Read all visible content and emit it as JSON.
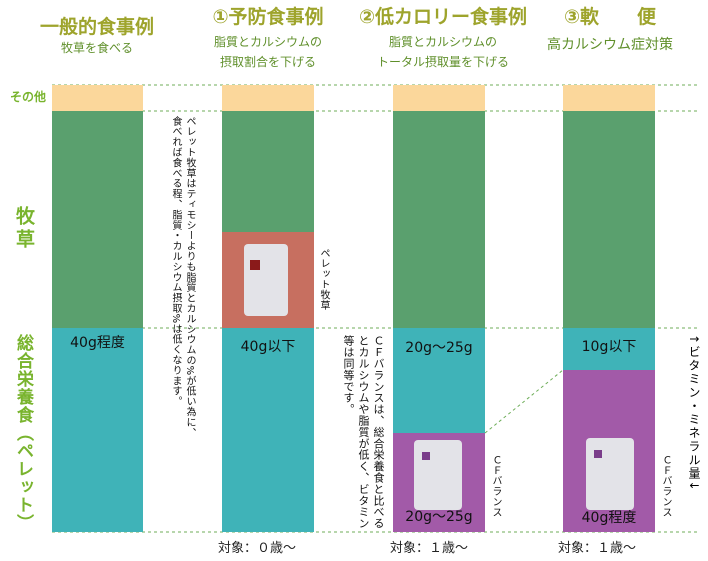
{
  "columns": [
    {
      "title": "一般的食事例",
      "subtitle": [
        "牧草を食べる"
      ],
      "amounts": [
        "40g程度"
      ]
    },
    {
      "title": "①予防食事例",
      "subtitle": [
        "脂質とカルシウムの",
        "摂取割合を下げる"
      ],
      "amounts": [
        "40g以下"
      ],
      "target": "対象：０歳～",
      "block_label": "ペレット牧草"
    },
    {
      "title": "②低カロリー食事例",
      "subtitle": [
        "脂質とカルシウムの",
        "トータル摂取量を下げる"
      ],
      "amounts": [
        "20g～25g",
        "20g～25g"
      ],
      "target": "対象：１歳～",
      "block_label": "ＣＦバランス"
    },
    {
      "title": "③軟　　便",
      "subtitle": [
        "高カルシウム症対策"
      ],
      "amounts": [
        "10g以下",
        "40g程度"
      ],
      "target": "対象：１歳～",
      "block_label": "ＣＦバランス"
    }
  ],
  "side_labels": {
    "other": "その他",
    "hay": "牧草",
    "pellet": "総合栄養食（ペレット）",
    "vitamin": "↑ビタミン・ミネラル量↓"
  },
  "notes": {
    "pellet_hay": [
      "ペレット牧草はティモシーよりも脂質とカルシウムの%が低い為に、",
      "食べれば食べる程、脂質・カルシウム摂取%は低くなります。"
    ],
    "cf_balance": [
      "ＣＦバランスは、総合栄養食と比べる",
      "とカルシウムや脂質が低く、ビタミン",
      "等は同等です。"
    ]
  }
}
